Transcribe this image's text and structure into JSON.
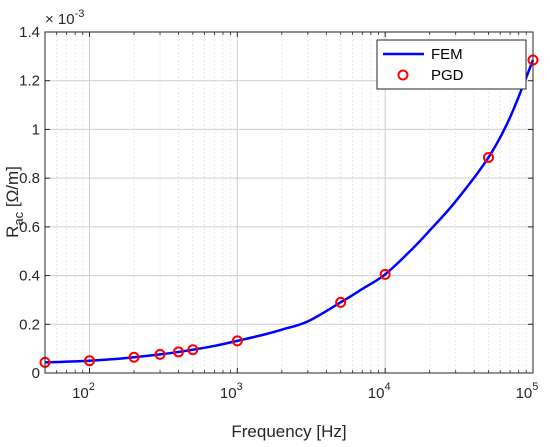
{
  "chart_data": {
    "type": "line",
    "xlabel": "Frequency [Hz]",
    "ylabel_main": "R",
    "ylabel_sub": "ac",
    "ylabel_unit": " [Ω/m]",
    "y_exponent_base": "× 10",
    "y_exponent_power": "-3",
    "x_scale": "log",
    "xlim": [
      50,
      100000
    ],
    "ylim": [
      0,
      0.0014
    ],
    "grid": true,
    "minor_grid": true,
    "legend_position": "top-right",
    "x_ticks": [
      {
        "value": 100,
        "base": "10",
        "exp": "2"
      },
      {
        "value": 1000,
        "base": "10",
        "exp": "3"
      },
      {
        "value": 10000,
        "base": "10",
        "exp": "4"
      },
      {
        "value": 100000,
        "base": "10",
        "exp": "5"
      }
    ],
    "y_ticks": [
      {
        "value": 0,
        "label": "0"
      },
      {
        "value": 0.0002,
        "label": "0.2"
      },
      {
        "value": 0.0004,
        "label": "0.4"
      },
      {
        "value": 0.0006,
        "label": "0.6"
      },
      {
        "value": 0.0008,
        "label": "0.8"
      },
      {
        "value": 0.001,
        "label": "1"
      },
      {
        "value": 0.0012,
        "label": "1.2"
      },
      {
        "value": 0.0014,
        "label": "1.4"
      }
    ],
    "series": [
      {
        "name": "FEM",
        "style": "line",
        "color": "#0000ff",
        "x": [
          50,
          70,
          100,
          150,
          200,
          300,
          400,
          500,
          700,
          1000,
          1500,
          2000,
          3000,
          5000,
          7000,
          10000,
          15000,
          20000,
          30000,
          50000,
          70000,
          100000
        ],
        "y": [
          4.35e-05,
          4.65e-05,
          5.05e-05,
          5.75e-05,
          6.45e-05,
          7.65e-05,
          8.65e-05,
          9.55e-05,
          0.000111,
          0.000132,
          0.000157,
          0.000178,
          0.000212,
          0.00029,
          0.000345,
          0.000405,
          0.000505,
          0.000585,
          0.000705,
          0.000885,
          0.00105,
          0.001285
        ]
      },
      {
        "name": "PGD",
        "style": "markers",
        "color": "#ff0000",
        "x": [
          50,
          100,
          200,
          300,
          400,
          500,
          1000,
          5000,
          10000,
          50000,
          100000
        ],
        "y": [
          4.35e-05,
          5.05e-05,
          6.45e-05,
          7.65e-05,
          8.65e-05,
          9.55e-05,
          0.000132,
          0.00029,
          0.000405,
          0.000885,
          0.001285
        ]
      }
    ]
  }
}
